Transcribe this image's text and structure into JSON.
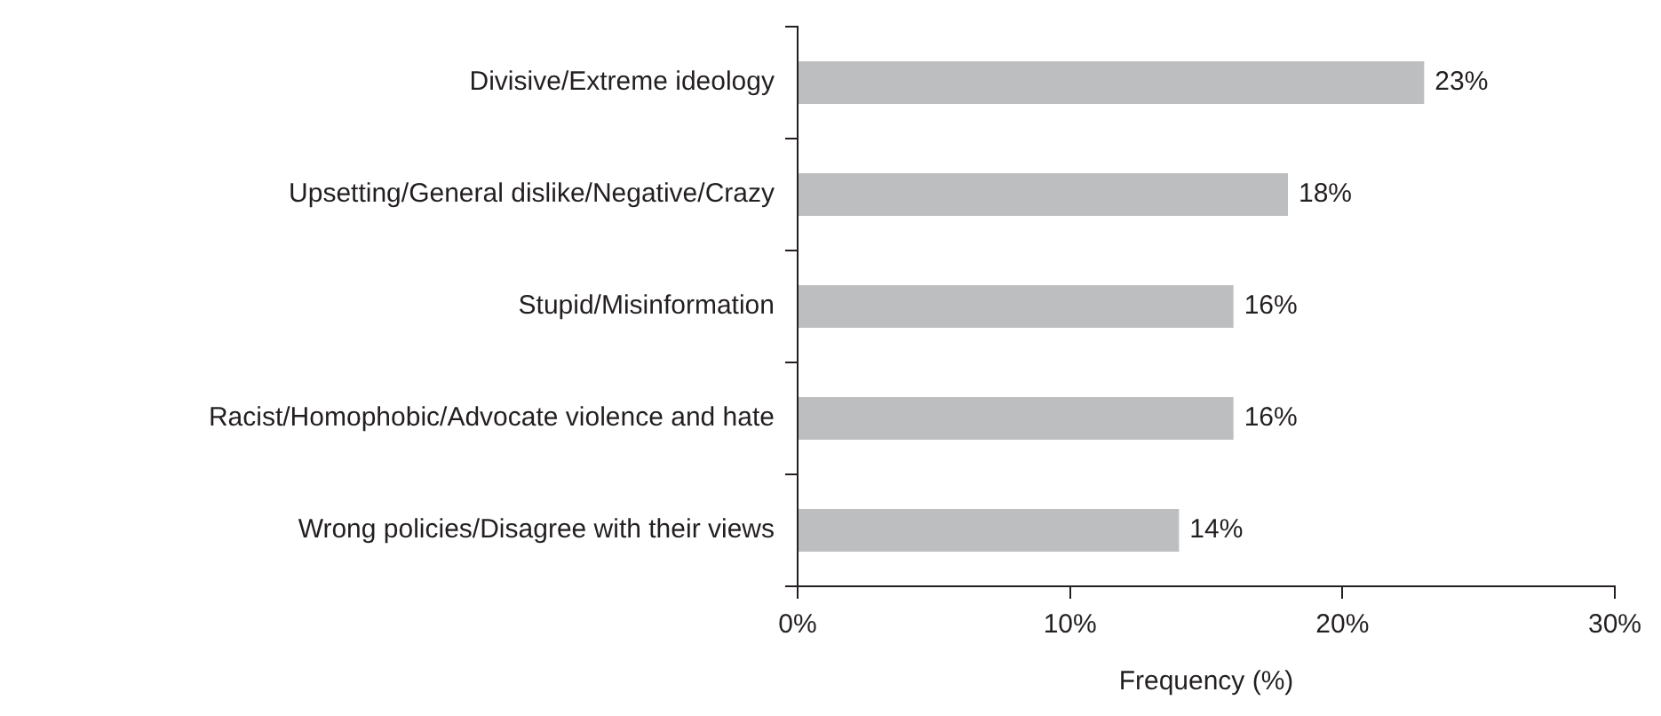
{
  "chart_data": {
    "type": "bar",
    "orientation": "horizontal",
    "xlabel": "Frequency (%)",
    "categories": [
      "Divisive/Extreme ideology",
      "Upsetting/General dislike/Negative/Crazy",
      "Stupid/Misinformation",
      "Racist/Homophobic/Advocate violence and hate",
      "Wrong policies/Disagree with their views"
    ],
    "values": [
      23,
      18,
      16,
      16,
      14
    ],
    "value_labels": [
      "23%",
      "18%",
      "16%",
      "16%",
      "14%"
    ],
    "color": "#bcbec0",
    "xlim": [
      0,
      30
    ],
    "xticks": [
      {
        "value": 0,
        "label": "0%"
      },
      {
        "value": 10,
        "label": "10%"
      },
      {
        "value": 20,
        "label": "20%"
      },
      {
        "value": 30,
        "label": "30%"
      }
    ],
    "grid": false,
    "legend": false
  }
}
